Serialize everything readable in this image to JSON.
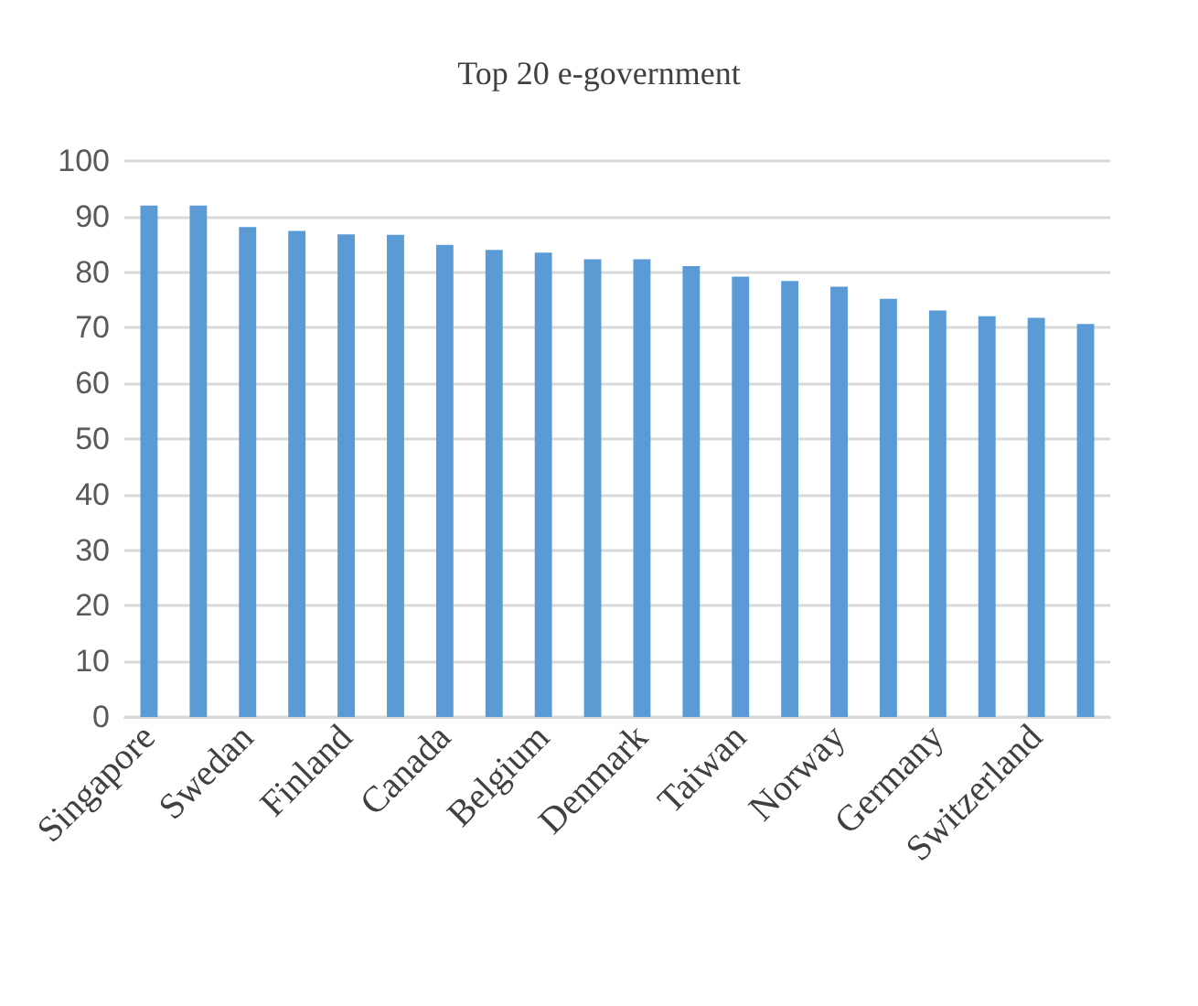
{
  "chart_data": {
    "type": "bar",
    "title": "Top 20 e-government",
    "categories": [
      "Singapore",
      null,
      "Swedan",
      null,
      "Finland",
      null,
      "Canada",
      null,
      "Belgium",
      null,
      "Denmark",
      null,
      "Taiwan",
      null,
      "Norway",
      null,
      "Germany",
      null,
      "Switzerland",
      null
    ],
    "values": [
      92.0,
      92.0,
      88.1,
      87.4,
      86.8,
      86.7,
      84.9,
      84.0,
      83.5,
      82.3,
      82.3,
      81.1,
      79.2,
      78.4,
      77.4,
      75.2,
      73.1,
      72.1,
      71.8,
      70.7
    ],
    "color": "#5b9bd5",
    "ylim": [
      0,
      100
    ],
    "yticks": [
      0,
      10,
      20,
      30,
      40,
      50,
      60,
      70,
      80,
      90,
      100
    ],
    "grid": "y"
  }
}
